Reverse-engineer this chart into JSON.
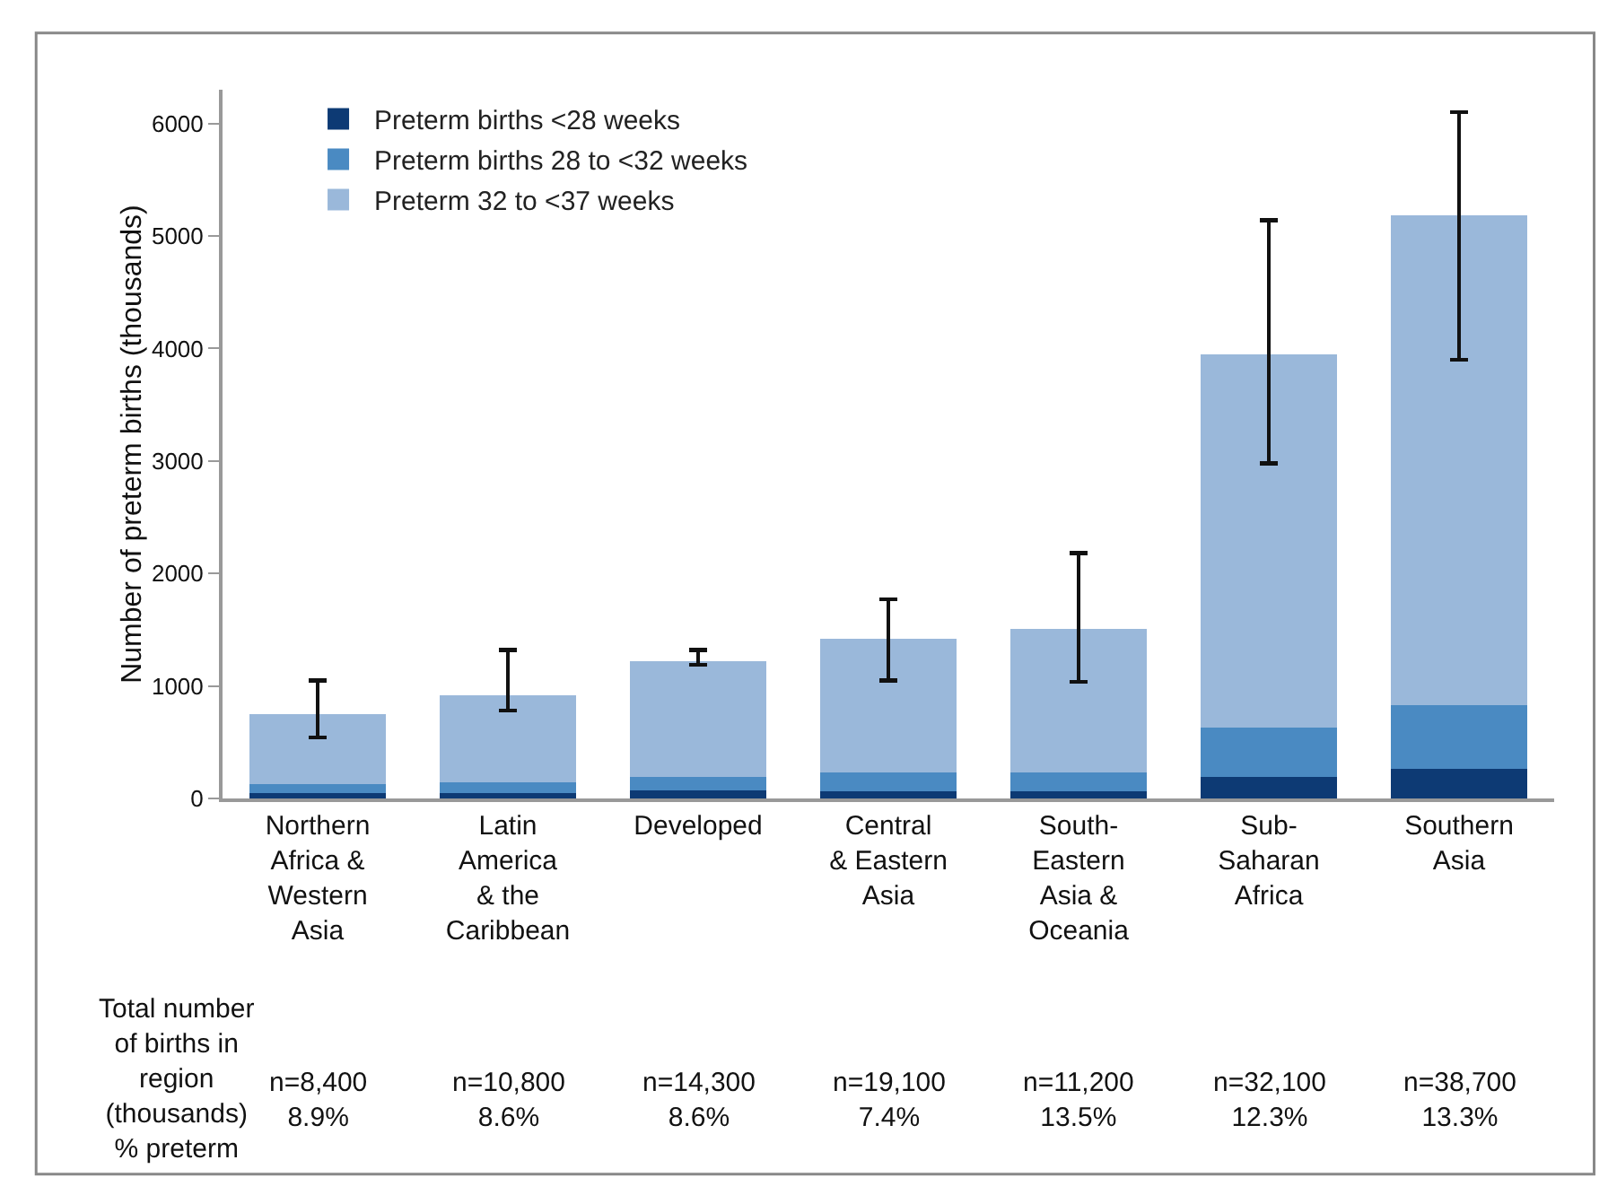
{
  "chart_data": {
    "type": "bar",
    "stacked": true,
    "ylabel": "Number of preterm births (thousands)",
    "categories": [
      "Northern\nAfrica &\nWestern\nAsia",
      "Latin\nAmerica\n& the\nCaribbean",
      "Developed",
      "Central\n& Eastern\nAsia",
      "South-\nEastern\nAsia &\nOceania",
      "Sub-\nSaharan\nAfrica",
      "Southern\nAsia"
    ],
    "series": [
      {
        "name": "Preterm births <28 weeks",
        "color": "#0d3a74",
        "values": [
          50,
          50,
          70,
          60,
          60,
          190,
          260
        ]
      },
      {
        "name": "Preterm births 28 to <32 weeks",
        "color": "#4a8ac2",
        "values": [
          80,
          90,
          120,
          170,
          170,
          440,
          570
        ]
      },
      {
        "name": "Preterm 32 to <37 weeks",
        "color": "#9ab8da",
        "values": [
          620,
          780,
          1030,
          1190,
          1280,
          3320,
          4350
        ],
        "errors": [
          [
            540,
            1050
          ],
          [
            780,
            1320
          ],
          [
            1190,
            1320
          ],
          [
            1050,
            1770
          ],
          [
            1035,
            2180
          ],
          [
            2980,
            5140
          ],
          [
            3900,
            6100
          ]
        ]
      }
    ],
    "ylim": [
      0,
      6300
    ],
    "yticks": [
      0,
      1000,
      2000,
      3000,
      4000,
      5000,
      6000
    ],
    "grid": false,
    "legend": "top left",
    "annotations": [
      "Total number\nof births in\nregion\n(thousands)\n% preterm",
      "n=8,400\n8.9%",
      "n=10,800\n8.6%",
      "n=14,300\n8.6%",
      "n=19,100\n7.4%",
      "n=11,200\n13.5%",
      "n=32,100\n12.3%",
      "n=38,700\n13.3%"
    ]
  }
}
